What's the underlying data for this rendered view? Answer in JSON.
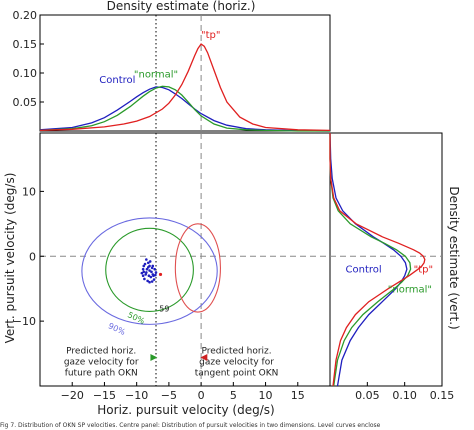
{
  "chart_data": [
    {
      "id": "top",
      "type": "line",
      "title": "Density estimate (horiz.)",
      "xlim": [
        -25,
        20
      ],
      "ylim": [
        0,
        0.2
      ],
      "yticks": [
        "0.05",
        "0.10",
        "0.15",
        "0.20"
      ],
      "ytick_values": [
        0.05,
        0.1,
        0.15,
        0.2
      ],
      "series": [
        {
          "name": "Control",
          "color": "#1f1fbf",
          "x": [
            -25,
            -20,
            -17,
            -15,
            -13,
            -11,
            -10,
            -9,
            -8,
            -7,
            -6,
            -5,
            -4,
            -3,
            -2,
            -1,
            0,
            2,
            4,
            7,
            10,
            15,
            20
          ],
          "y": [
            0.002,
            0.006,
            0.014,
            0.023,
            0.036,
            0.051,
            0.059,
            0.066,
            0.072,
            0.076,
            0.075,
            0.071,
            0.064,
            0.056,
            0.047,
            0.038,
            0.03,
            0.018,
            0.01,
            0.004,
            0.002,
            0.0005,
            0
          ]
        },
        {
          "name": "\"normal\"",
          "color": "#2a9a2a",
          "x": [
            -25,
            -20,
            -17,
            -15,
            -13,
            -11,
            -10,
            -9,
            -8,
            -7,
            -6,
            -5,
            -4,
            -3,
            -2,
            -1,
            0,
            2,
            4,
            7,
            10,
            15,
            20
          ],
          "y": [
            0.001,
            0.004,
            0.009,
            0.016,
            0.027,
            0.042,
            0.051,
            0.06,
            0.068,
            0.074,
            0.077,
            0.076,
            0.071,
            0.062,
            0.05,
            0.037,
            0.026,
            0.012,
            0.005,
            0.002,
            0.001,
            0,
            0
          ]
        },
        {
          "name": "\"tp\"",
          "color": "#e02020",
          "x": [
            -25,
            -20,
            -15,
            -12,
            -10,
            -8,
            -6,
            -5,
            -4,
            -3,
            -2,
            -1,
            -0.5,
            0,
            0.5,
            1,
            2,
            3,
            4,
            6,
            8,
            10,
            15,
            20
          ],
          "y": [
            0.001,
            0.003,
            0.007,
            0.012,
            0.017,
            0.025,
            0.038,
            0.048,
            0.062,
            0.08,
            0.103,
            0.13,
            0.142,
            0.15,
            0.146,
            0.135,
            0.105,
            0.075,
            0.05,
            0.024,
            0.012,
            0.006,
            0.002,
            0.001
          ]
        }
      ],
      "labels": [
        {
          "text": "Control",
          "color": "#1f1fbf",
          "x": -13,
          "y": 0.083
        },
        {
          "text": "\"normal\"",
          "color": "#2a9a2a",
          "x": -7,
          "y": 0.092
        },
        {
          "text": "\"tp\"",
          "color": "#e02020",
          "x": 1.5,
          "y": 0.16
        }
      ]
    },
    {
      "id": "main",
      "type": "scatter",
      "xlabel": "Horiz. pursuit velocity (deg/s)",
      "ylabel": "Vert. pursuit velocity (deg/s)",
      "xlim": [
        -25,
        20
      ],
      "ylim": [
        -20,
        19
      ],
      "xticks": [
        -20,
        -15,
        -10,
        -5,
        0,
        5,
        10,
        15
      ],
      "yticks": [
        -10,
        0,
        10
      ],
      "points_color": "#1f1fbf",
      "points": [
        [
          -8.5,
          -2.5
        ],
        [
          -8,
          -1.5
        ],
        [
          -7.5,
          -2.8
        ],
        [
          -8.8,
          -3.5
        ],
        [
          -7.2,
          -2
        ],
        [
          -8.2,
          -1
        ],
        [
          -7.8,
          -3.2
        ],
        [
          -9,
          -2
        ],
        [
          -7,
          -2.5
        ],
        [
          -8.6,
          -2.8
        ],
        [
          -7.6,
          -1.8
        ],
        [
          -8.3,
          -3.8
        ],
        [
          -7.4,
          -3
        ],
        [
          -8.9,
          -1.5
        ],
        [
          -8,
          -2.2
        ],
        [
          -7.9,
          -0.8
        ],
        [
          -8.4,
          -2.0
        ],
        [
          -7.3,
          -3.6
        ],
        [
          -9.2,
          -2.6
        ],
        [
          -7.7,
          -2.4
        ],
        [
          -8.1,
          -3.0
        ],
        [
          -8.7,
          -1.2
        ],
        [
          -7.5,
          -1.5
        ],
        [
          -8.0,
          -4.0
        ],
        [
          -9.0,
          -3.0
        ],
        [
          -7.1,
          -2.9
        ],
        [
          -8.5,
          -0.5
        ],
        [
          -7.6,
          -3.9
        ],
        [
          -8.9,
          -2.4
        ],
        [
          -8.2,
          -1.7
        ]
      ],
      "highlight_point": [
        -6.3,
        -2.8
      ],
      "point_label": {
        "text": "59",
        "x": -5.7,
        "y": -8.5
      },
      "ellipses": [
        {
          "label": "90%",
          "color": "#6a6ae0",
          "cx": -8,
          "cy": -2.3,
          "rx": 10.5,
          "ry": 8.2,
          "angle": 0,
          "label_x": -14.5,
          "label_y": -11
        },
        {
          "label": "50%",
          "color": "#2a9a2a",
          "cx": -8,
          "cy": -2.1,
          "rx": 6.8,
          "ry": 6.4,
          "angle": 0,
          "label_x": -11.5,
          "label_y": -9.3
        },
        {
          "label": "",
          "color": "#e05050",
          "cx": -0.5,
          "cy": -1.8,
          "rx": 3.5,
          "ry": 6.8,
          "angle": 0
        }
      ],
      "vlines": [
        {
          "x": -7,
          "style": "dotted",
          "color": "#000000"
        },
        {
          "x": 0,
          "style": "dashed",
          "color": "#888888"
        }
      ],
      "hline": {
        "y": 0,
        "style": "dashed",
        "color": "#888888"
      },
      "annotations": [
        {
          "lines": [
            "Predicted horiz.",
            "gaze velocity for",
            "future path OKN"
          ],
          "x": -15.5,
          "y": -15
        },
        {
          "lines": [
            "Predicted horiz.",
            "gaze velocity for",
            "tangent point OKN"
          ],
          "x": 5.5,
          "y": -15
        }
      ],
      "markers": [
        {
          "shape": "triangle-right",
          "color": "#2a9a2a",
          "x": -7.4,
          "y": -15.6
        },
        {
          "shape": "triangle-left",
          "color": "#cc2020",
          "x": 0.5,
          "y": -15.6
        }
      ]
    },
    {
      "id": "right",
      "type": "line",
      "ylabel": "Density estimate (vert.)",
      "xlim": [
        0,
        0.15
      ],
      "xticks": [
        "0.05",
        "0.10",
        "0.15"
      ],
      "xtick_values": [
        0.05,
        0.1,
        0.15
      ],
      "series": [
        {
          "name": "Control",
          "color": "#1f1fbf",
          "v": [
            -20,
            -16,
            -13,
            -11,
            -9,
            -7,
            -5,
            -4,
            -3,
            -2,
            -1,
            0,
            1,
            2,
            3,
            5,
            7,
            9,
            12,
            15,
            19
          ],
          "d": [
            0.01,
            0.016,
            0.027,
            0.038,
            0.052,
            0.07,
            0.088,
            0.095,
            0.1,
            0.103,
            0.101,
            0.095,
            0.085,
            0.072,
            0.058,
            0.034,
            0.017,
            0.008,
            0.003,
            0.001,
            0
          ]
        },
        {
          "name": "\"normal\"",
          "color": "#2a9a2a",
          "v": [
            -20,
            -16,
            -13,
            -11,
            -9,
            -7,
            -5,
            -4,
            -3,
            -2,
            -1,
            0,
            1,
            2,
            3,
            5,
            7,
            9,
            12,
            15,
            19
          ],
          "d": [
            0.005,
            0.01,
            0.019,
            0.029,
            0.044,
            0.064,
            0.086,
            0.096,
            0.104,
            0.108,
            0.107,
            0.101,
            0.089,
            0.073,
            0.055,
            0.027,
            0.011,
            0.004,
            0.001,
            0,
            0
          ]
        },
        {
          "name": "\"tp\"",
          "color": "#e02020",
          "v": [
            -20,
            -16,
            -13,
            -11,
            -9,
            -7,
            -5,
            -4,
            -3,
            -2,
            -1.5,
            -1,
            -0.5,
            0,
            0.5,
            1,
            2,
            3,
            5,
            7,
            9,
            12,
            15,
            19
          ],
          "d": [
            0.004,
            0.008,
            0.014,
            0.022,
            0.034,
            0.052,
            0.078,
            0.092,
            0.106,
            0.118,
            0.123,
            0.126,
            0.127,
            0.125,
            0.12,
            0.112,
            0.092,
            0.07,
            0.035,
            0.013,
            0.005,
            0.001,
            0,
            0
          ]
        }
      ],
      "labels": [
        {
          "text": "Control",
          "color": "#1f1fbf",
          "d": 0.045,
          "v": -2.5
        },
        {
          "text": "\"tp\"",
          "color": "#e02020",
          "d": 0.125,
          "v": -2.5
        },
        {
          "text": "\"normal\"",
          "color": "#2a9a2a",
          "d": 0.107,
          "v": -5.6
        }
      ]
    }
  ],
  "caption": "Fig 7. Distribution of OKN SP velocities. Centre panel: Distribution of pursuit velocities in two dimensions. Level curves enclose"
}
